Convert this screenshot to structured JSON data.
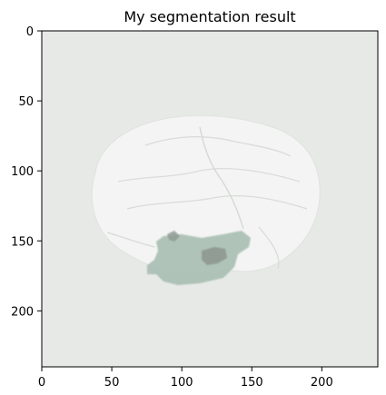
{
  "chart_data": {
    "type": "heatmap",
    "title": "My segmentation result",
    "xlabel": "",
    "ylabel": "",
    "xlim": [
      0,
      240
    ],
    "ylim": [
      240,
      0
    ],
    "grid": false,
    "x_ticks": [
      0,
      50,
      100,
      150,
      200
    ],
    "y_ticks": [
      0,
      50,
      100,
      150,
      200
    ],
    "x_tick_labels": [
      "0",
      "50",
      "100",
      "150",
      "200"
    ],
    "y_tick_labels": [
      "0",
      "50",
      "100",
      "150",
      "200"
    ],
    "background_color": "#e7e9e7",
    "overlay_color": "#a9bfb3",
    "core_color": "#8f9a93",
    "image_extent": [
      0,
      240,
      0,
      240
    ]
  }
}
